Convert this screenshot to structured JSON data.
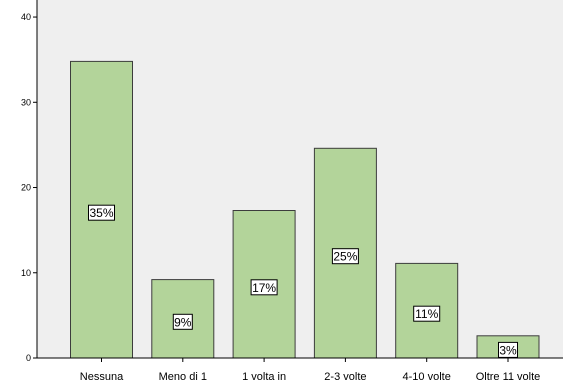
{
  "chart_data": {
    "type": "bar",
    "categories": [
      "Nessuna",
      "Meno di 1",
      "1 volta in",
      "2-3 volte",
      "4-10 volte",
      "Oltre 11 volte"
    ],
    "values": [
      34.8,
      9.2,
      17.3,
      24.6,
      11.1,
      2.6
    ],
    "data_labels": [
      "35%",
      "9%",
      "17%",
      "25%",
      "11%",
      "3%"
    ],
    "yticks": [
      "0",
      "10",
      "20",
      "30",
      "40"
    ],
    "ylim": [
      0,
      42
    ],
    "title": "",
    "xlabel": "",
    "ylabel": "",
    "grid": false,
    "colors": {
      "plot_background": "#efefef",
      "bar_fill": "#b3d49a",
      "bar_stroke": "#3c3c3c",
      "axis": "#000000"
    }
  }
}
